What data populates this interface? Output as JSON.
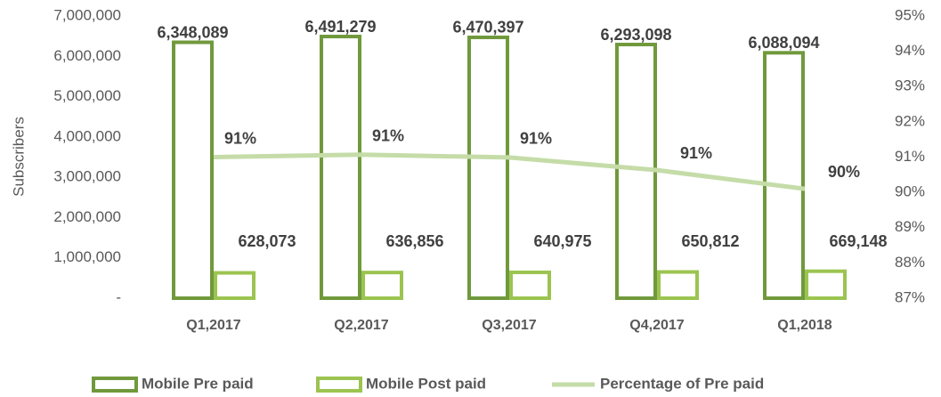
{
  "chart_data": {
    "type": "bar",
    "y_axis_label": "Subscribers",
    "categories": [
      "Q1,2017",
      "Q2,2017",
      "Q3,2017",
      "Q4,2017",
      "Q1,2018"
    ],
    "series": [
      {
        "name": "Mobile Pre paid",
        "type": "bar",
        "color": "#70993c",
        "values": [
          6348089,
          6491279,
          6470397,
          6293098,
          6088094
        ],
        "value_labels": [
          "6,348,089",
          "6,491,279",
          "6,470,397",
          "6,293,098",
          "6,088,094"
        ]
      },
      {
        "name": "Mobile Post paid",
        "type": "bar",
        "color": "#9bc450",
        "values": [
          628073,
          636856,
          640975,
          650812,
          669148
        ],
        "value_labels": [
          "628,073",
          "636,856",
          "640,975",
          "650,812",
          "669,148"
        ]
      },
      {
        "name": "Percentage of Pre paid",
        "type": "line",
        "color": "#c5dca8",
        "axis": "y2",
        "values": [
          91.0,
          91.07,
          90.99,
          90.63,
          90.1
        ],
        "value_labels": [
          "91%",
          "91%",
          "91%",
          "91%",
          "90%"
        ]
      }
    ],
    "ylim": [
      0,
      7000000
    ],
    "yticks": [
      {
        "value": 0,
        "label": "-"
      },
      {
        "value": 1000000,
        "label": "1,000,000"
      },
      {
        "value": 2000000,
        "label": "2,000,000"
      },
      {
        "value": 3000000,
        "label": "3,000,000"
      },
      {
        "value": 4000000,
        "label": "4,000,000"
      },
      {
        "value": 5000000,
        "label": "5,000,000"
      },
      {
        "value": 6000000,
        "label": "6,000,000"
      },
      {
        "value": 7000000,
        "label": "7,000,000"
      }
    ],
    "y2lim": [
      87,
      95
    ],
    "y2ticks": [
      {
        "value": 87,
        "label": "87%"
      },
      {
        "value": 88,
        "label": "88%"
      },
      {
        "value": 89,
        "label": "89%"
      },
      {
        "value": 90,
        "label": "90%"
      },
      {
        "value": 91,
        "label": "91%"
      },
      {
        "value": 92,
        "label": "92%"
      },
      {
        "value": 93,
        "label": "93%"
      },
      {
        "value": 94,
        "label": "94%"
      },
      {
        "value": 95,
        "label": "95%"
      }
    ],
    "legend": "bottom"
  }
}
